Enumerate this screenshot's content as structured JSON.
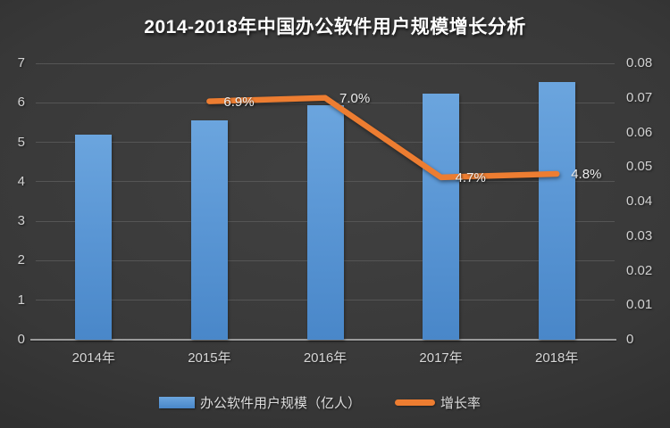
{
  "title": "2014-2018年中国办公软件用户规模增长分析",
  "legend": {
    "bar_label": "办公软件用户规模（亿人）",
    "line_label": "增长率"
  },
  "colors": {
    "bar": "#5B9BD5",
    "line": "#ED7D31",
    "background": "#383838",
    "text": "#D6D6D6"
  },
  "chart_data": {
    "type": "bar",
    "subtype": "combo-bar-line-dual-axis",
    "title": "2014-2018年中国办公软件用户规模增长分析",
    "categories": [
      "2014年",
      "2015年",
      "2016年",
      "2017年",
      "2018年"
    ],
    "series": [
      {
        "name": "办公软件用户规模（亿人）",
        "type": "bar",
        "axis": "left",
        "color": "#5B9BD5",
        "values": [
          5.2,
          5.56,
          5.95,
          6.23,
          6.53
        ]
      },
      {
        "name": "增长率",
        "type": "line",
        "axis": "right",
        "color": "#ED7D31",
        "values": [
          null,
          0.069,
          0.07,
          0.047,
          0.048
        ],
        "point_labels": [
          null,
          "6.9%",
          "7.0%",
          "4.7%",
          "4.8%"
        ]
      }
    ],
    "left_axis": {
      "min": 0,
      "max": 7,
      "ticks": [
        "0",
        "1",
        "2",
        "3",
        "4",
        "5",
        "6",
        "7"
      ]
    },
    "right_axis": {
      "min": 0,
      "max": 0.08,
      "ticks": [
        "0",
        "0.01",
        "0.02",
        "0.03",
        "0.04",
        "0.05",
        "0.06",
        "0.07",
        "0.08"
      ]
    },
    "grid": true,
    "legend_position": "bottom"
  }
}
